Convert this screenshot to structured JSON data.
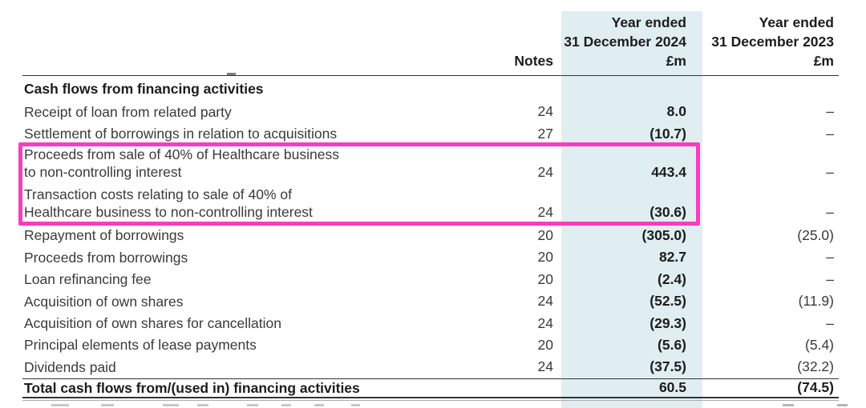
{
  "header": {
    "notes_label": "Notes",
    "col_2024": {
      "line1": "Year ended",
      "line2": "31 December 2024",
      "unit": "£m"
    },
    "col_2023": {
      "line1": "Year ended",
      "line2": "31 December 2023",
      "unit": "£m"
    }
  },
  "section_title": "Cash flows from financing activities",
  "rows": [
    {
      "label": "Receipt of loan from related party",
      "note": "24",
      "y2024": "8.0",
      "y2023": "–"
    },
    {
      "label": "Settlement of borrowings in relation to acquisitions",
      "note": "27",
      "y2024": "(10.7)",
      "y2023": "–"
    },
    {
      "label": "Proceeds from sale of 40% of Healthcare business\nto non-controlling interest",
      "note": "24",
      "y2024": "443.4",
      "y2023": "–",
      "highlighted": true
    },
    {
      "label": "Transaction costs relating to sale of 40% of\nHealthcare business to non-controlling interest",
      "note": "24",
      "y2024": "(30.6)",
      "y2023": "–",
      "highlighted": true
    },
    {
      "label": "Repayment of borrowings",
      "note": "20",
      "y2024": "(305.0)",
      "y2023": "(25.0)"
    },
    {
      "label": "Proceeds from borrowings",
      "note": "20",
      "y2024": "82.7",
      "y2023": "–"
    },
    {
      "label": "Loan refinancing fee",
      "note": "20",
      "y2024": "(2.4)",
      "y2023": "–"
    },
    {
      "label": "Acquisition of own shares",
      "note": "24",
      "y2024": "(52.5)",
      "y2023": "(11.9)"
    },
    {
      "label": "Acquisition of own shares for cancellation",
      "note": "24",
      "y2024": "(29.3)",
      "y2023": "–"
    },
    {
      "label": "Principal elements of lease payments",
      "note": "20",
      "y2024": "(5.6)",
      "y2023": "(5.4)"
    },
    {
      "label": "Dividends paid",
      "note": "24",
      "y2024": "(37.5)",
      "y2023": "(32.2)"
    }
  ],
  "total_row": {
    "label": "Total cash flows from/(used in) financing activities",
    "y2024": "60.5",
    "y2023": "(74.5)"
  },
  "colors": {
    "highlight_box": "#fa3cbe",
    "column_shade": "#e0eef2"
  }
}
